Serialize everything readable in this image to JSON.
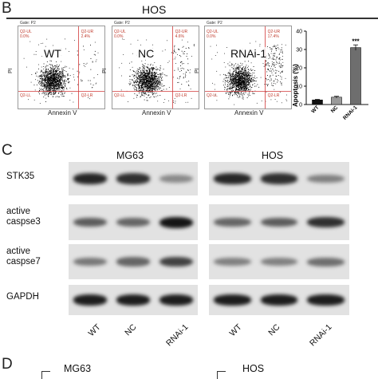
{
  "panel_b": {
    "letter": "B",
    "title": "HOS",
    "plots": [
      {
        "label": "WT",
        "gate": "Gate: P2",
        "q_ul": "Q2-UL",
        "q_ur": "Q2-UR",
        "q_ll": "Q2-LL",
        "q_lr": "Q2-LR",
        "v_ul": "0.0%",
        "v_ur": "2.4%",
        "v_ll": "",
        "v_lr": ""
      },
      {
        "label": "NC",
        "gate": "Gate: P2",
        "q_ul": "Q2-UL",
        "q_ur": "Q2-UR",
        "q_ll": "Q2-LL",
        "q_lr": "Q2-LR",
        "v_ul": "0.0%",
        "v_ur": "4.6%",
        "v_ll": "",
        "v_lr": ""
      },
      {
        "label": "RNAi-1",
        "gate": "Gate: P2",
        "q_ul": "Q2-UL",
        "q_ur": "Q2-UR",
        "q_ll": "Q2-LL",
        "q_lr": "Q2-LR",
        "v_ul": "0.0%",
        "v_ur": "17.4%",
        "v_ll": "",
        "v_lr": ""
      }
    ],
    "x_axis_label": "Annexin V",
    "y_axis_label": "PI"
  },
  "chart_data": {
    "type": "bar",
    "categories": [
      "WT",
      "NC",
      "RNAi-1"
    ],
    "values": [
      2.5,
      4,
      31
    ],
    "errors": [
      0.3,
      0.5,
      1.5
    ],
    "annotation": "***",
    "ylabel": "Apoptosis (%)",
    "ylim": [
      0,
      40
    ],
    "yticks": [
      "0",
      "10",
      "20",
      "30",
      "40"
    ],
    "bar_colors": [
      "#111111",
      "#9a9a9a",
      "#6e6e6e"
    ]
  },
  "panel_c": {
    "letter": "C",
    "groups": [
      "MG63",
      "HOS"
    ],
    "rows": [
      {
        "label_lines": [
          "STK35"
        ]
      },
      {
        "label_lines": [
          "active",
          "caspse3"
        ]
      },
      {
        "label_lines": [
          "active",
          "caspse7"
        ]
      },
      {
        "label_lines": [
          "GAPDH"
        ]
      }
    ],
    "lanes": [
      "WT",
      "NC",
      "RNAi-1"
    ],
    "band_intensity": {
      "MG63": [
        [
          0.9,
          0.85,
          0.35
        ],
        [
          0.6,
          0.55,
          1.0
        ],
        [
          0.45,
          0.55,
          0.75
        ],
        [
          0.95,
          0.95,
          0.95
        ]
      ],
      "HOS": [
        [
          0.9,
          0.85,
          0.4
        ],
        [
          0.55,
          0.6,
          0.85
        ],
        [
          0.4,
          0.4,
          0.5
        ],
        [
          0.95,
          0.95,
          0.95
        ]
      ]
    }
  },
  "panel_d": {
    "letter": "D",
    "titles": [
      "MG63",
      "HOS"
    ]
  }
}
